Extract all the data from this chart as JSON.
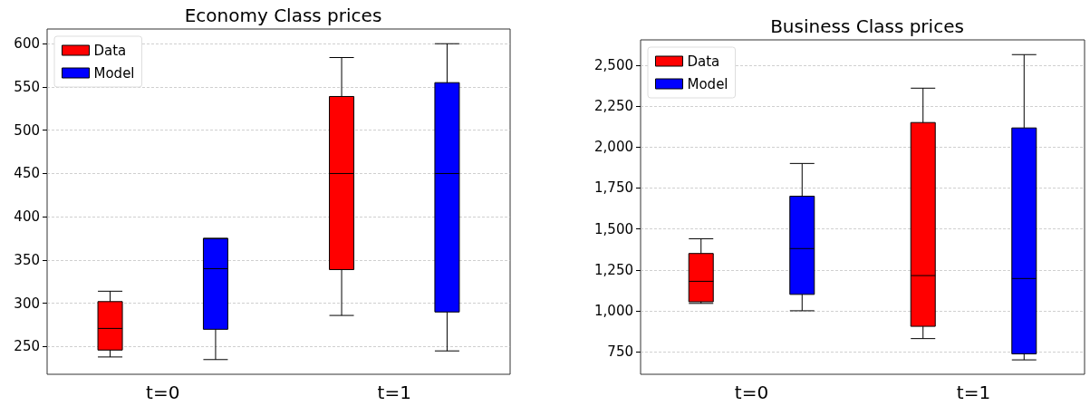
{
  "chart_data": [
    {
      "type": "box",
      "title": "Economy Class prices",
      "categories": [
        "t=0",
        "t=1"
      ],
      "series": [
        {
          "name": "Data",
          "color": "#ff0000",
          "boxes": [
            {
              "low": 238,
              "q1": 246,
              "median": 271,
              "q3": 302,
              "high": 314
            },
            {
              "low": 286,
              "q1": 339,
              "median": 450,
              "q3": 539,
              "high": 584
            }
          ]
        },
        {
          "name": "Model",
          "color": "#0000ff",
          "boxes": [
            {
              "low": 235,
              "q1": 270,
              "median": 340,
              "q3": 375,
              "high": 375
            },
            {
              "low": 245,
              "q1": 290,
              "median": 450,
              "q3": 555,
              "high": 600
            }
          ]
        }
      ],
      "ylim": [
        218,
        617
      ],
      "yticks": [
        250,
        300,
        350,
        400,
        450,
        500,
        550,
        600
      ],
      "grid": "y",
      "legend": "top left"
    },
    {
      "type": "box",
      "title": "Business Class prices",
      "categories": [
        "t=0",
        "t=1"
      ],
      "series": [
        {
          "name": "Data",
          "color": "#ff0000",
          "boxes": [
            {
              "low": 1045,
              "q1": 1055,
              "median": 1180,
              "q3": 1350,
              "high": 1440
            },
            {
              "low": 830,
              "q1": 905,
              "median": 1215,
              "q3": 2150,
              "high": 2360
            }
          ]
        },
        {
          "name": "Model",
          "color": "#0000ff",
          "boxes": [
            {
              "low": 1000,
              "q1": 1100,
              "median": 1380,
              "q3": 1700,
              "high": 1900
            },
            {
              "low": 700,
              "q1": 737,
              "median": 1197,
              "q3": 2117,
              "high": 2565
            }
          ]
        }
      ],
      "ylim": [
        612,
        2655
      ],
      "yticks": [
        750,
        {
          "value": 1000,
          "label": "1,000"
        },
        {
          "value": 1250,
          "label": "1,250"
        },
        {
          "value": 1500,
          "label": "1,500"
        },
        {
          "value": 1750,
          "label": "1,750"
        },
        {
          "value": 2000,
          "label": "2,000"
        },
        {
          "value": 2250,
          "label": "2,250"
        },
        {
          "value": 2500,
          "label": "2,500"
        }
      ],
      "grid": "y",
      "legend": "top left"
    }
  ]
}
